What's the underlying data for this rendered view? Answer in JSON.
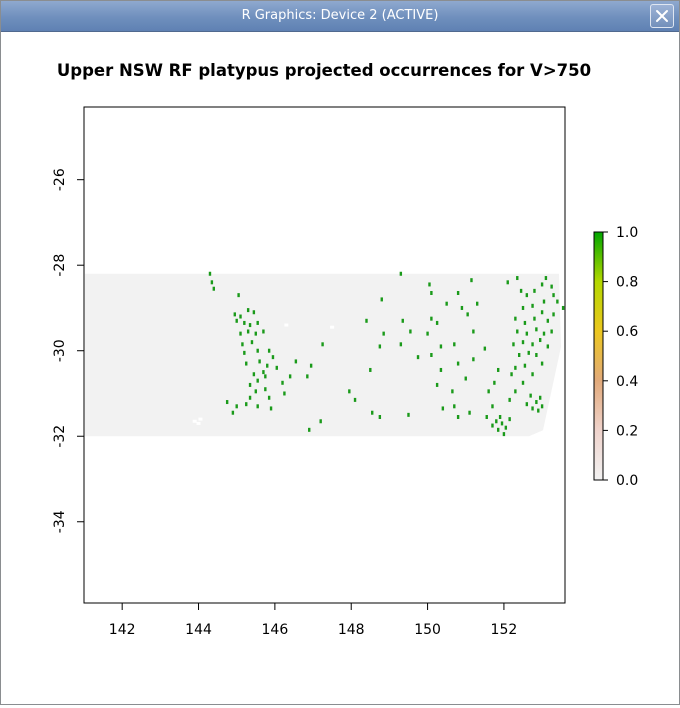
{
  "window": {
    "title": "R Graphics: Device 2 (ACTIVE)",
    "close_icon": "close-icon"
  },
  "chart_data": {
    "type": "heatmap",
    "title": "Upper NSW RF platypus projected occurrences for V>750",
    "xlim": [
      141,
      153.6
    ],
    "ylim": [
      -35.9,
      -24.3
    ],
    "x_ticks": [
      142,
      144,
      146,
      148,
      150,
      152
    ],
    "y_ticks": [
      -26,
      -28,
      -30,
      -32,
      -34
    ],
    "xlabel": "",
    "ylabel": "",
    "grid": false,
    "region": {
      "x_range": [
        141,
        153.6
      ],
      "y_range": [
        -32,
        -28.2
      ],
      "base_value": 0.0,
      "base_color": "#f2f2f2"
    },
    "colorbar": {
      "min": 0.0,
      "max": 1.0,
      "ticks": [
        "0.0",
        "0.2",
        "0.4",
        "0.6",
        "0.8",
        "1.0"
      ],
      "colors": [
        "#f2f2f2",
        "#efd3cc",
        "#e2aa7b",
        "#ecc71f",
        "#b4d800",
        "#00a600"
      ],
      "placement": "right"
    },
    "occurrence_value": 1.0,
    "occurrence_color": "#1a9a1a",
    "occurrences": [
      [
        144.3,
        -28.2
      ],
      [
        144.35,
        -28.4
      ],
      [
        144.4,
        -28.55
      ],
      [
        145.05,
        -28.7
      ],
      [
        144.95,
        -29.15
      ],
      [
        145.1,
        -29.2
      ],
      [
        145.3,
        -29.05
      ],
      [
        145.45,
        -29.1
      ],
      [
        145.0,
        -29.3
      ],
      [
        145.2,
        -29.35
      ],
      [
        145.35,
        -29.4
      ],
      [
        145.55,
        -29.35
      ],
      [
        145.1,
        -29.6
      ],
      [
        145.3,
        -29.55
      ],
      [
        145.5,
        -29.6
      ],
      [
        145.7,
        -29.55
      ],
      [
        145.15,
        -29.85
      ],
      [
        145.4,
        -29.8
      ],
      [
        145.2,
        -30.05
      ],
      [
        145.55,
        -30.0
      ],
      [
        145.85,
        -30.0
      ],
      [
        145.25,
        -30.3
      ],
      [
        145.6,
        -30.25
      ],
      [
        145.95,
        -30.15
      ],
      [
        145.45,
        -30.55
      ],
      [
        145.7,
        -30.5
      ],
      [
        145.8,
        -30.35
      ],
      [
        146.05,
        -30.4
      ],
      [
        145.35,
        -30.8
      ],
      [
        145.55,
        -30.7
      ],
      [
        145.75,
        -30.6
      ],
      [
        145.5,
        -30.95
      ],
      [
        145.75,
        -30.9
      ],
      [
        146.2,
        -30.75
      ],
      [
        145.35,
        -31.1
      ],
      [
        145.85,
        -31.1
      ],
      [
        144.75,
        -31.2
      ],
      [
        145.0,
        -31.3
      ],
      [
        145.25,
        -31.25
      ],
      [
        145.55,
        -31.3
      ],
      [
        145.9,
        -31.35
      ],
      [
        144.9,
        -31.45
      ],
      [
        146.4,
        -30.6
      ],
      [
        146.55,
        -30.25
      ],
      [
        146.85,
        -30.6
      ],
      [
        146.25,
        -31.0
      ],
      [
        146.95,
        -30.35
      ],
      [
        147.25,
        -29.85
      ],
      [
        147.2,
        -31.65
      ],
      [
        146.9,
        -31.85
      ],
      [
        148.8,
        -28.8
      ],
      [
        149.3,
        -28.2
      ],
      [
        150.05,
        -28.45
      ],
      [
        150.1,
        -28.65
      ],
      [
        150.8,
        -28.65
      ],
      [
        151.15,
        -28.35
      ],
      [
        148.4,
        -29.3
      ],
      [
        149.35,
        -29.3
      ],
      [
        150.1,
        -29.25
      ],
      [
        150.25,
        -29.35
      ],
      [
        150.5,
        -28.9
      ],
      [
        150.9,
        -29.0
      ],
      [
        151.05,
        -29.15
      ],
      [
        151.3,
        -28.9
      ],
      [
        148.85,
        -29.6
      ],
      [
        149.55,
        -29.55
      ],
      [
        150.0,
        -29.6
      ],
      [
        151.2,
        -29.55
      ],
      [
        148.75,
        -29.9
      ],
      [
        149.3,
        -29.85
      ],
      [
        149.75,
        -30.15
      ],
      [
        150.1,
        -30.1
      ],
      [
        150.35,
        -29.9
      ],
      [
        150.7,
        -29.85
      ],
      [
        151.2,
        -30.2
      ],
      [
        151.5,
        -29.95
      ],
      [
        148.5,
        -30.45
      ],
      [
        150.35,
        -30.45
      ],
      [
        150.8,
        -30.3
      ],
      [
        151.0,
        -30.65
      ],
      [
        147.95,
        -30.95
      ],
      [
        148.1,
        -31.15
      ],
      [
        150.25,
        -30.8
      ],
      [
        150.65,
        -30.95
      ],
      [
        148.55,
        -31.45
      ],
      [
        148.75,
        -31.55
      ],
      [
        149.5,
        -31.5
      ],
      [
        150.7,
        -31.3
      ],
      [
        150.8,
        -31.55
      ],
      [
        151.1,
        -31.45
      ],
      [
        150.4,
        -31.35
      ],
      [
        151.6,
        -30.95
      ],
      [
        151.75,
        -30.75
      ],
      [
        151.85,
        -30.45
      ],
      [
        151.7,
        -31.3
      ],
      [
        151.55,
        -31.55
      ],
      [
        152.45,
        -28.6
      ],
      [
        152.6,
        -28.7
      ],
      [
        152.8,
        -28.6
      ],
      [
        153.0,
        -28.45
      ],
      [
        153.1,
        -28.3
      ],
      [
        153.25,
        -28.5
      ],
      [
        153.3,
        -28.7
      ],
      [
        153.05,
        -28.85
      ],
      [
        152.75,
        -28.95
      ],
      [
        152.5,
        -29.0
      ],
      [
        152.3,
        -29.25
      ],
      [
        152.55,
        -29.35
      ],
      [
        152.8,
        -29.25
      ],
      [
        153.0,
        -29.1
      ],
      [
        153.15,
        -29.3
      ],
      [
        153.3,
        -29.15
      ],
      [
        152.35,
        -29.55
      ],
      [
        152.6,
        -29.6
      ],
      [
        152.85,
        -29.5
      ],
      [
        153.05,
        -29.6
      ],
      [
        153.25,
        -29.55
      ],
      [
        152.25,
        -29.85
      ],
      [
        152.5,
        -29.8
      ],
      [
        152.75,
        -29.85
      ],
      [
        152.95,
        -29.75
      ],
      [
        153.15,
        -29.9
      ],
      [
        152.4,
        -30.1
      ],
      [
        152.65,
        -30.05
      ],
      [
        152.85,
        -30.1
      ],
      [
        153.0,
        -30.3
      ],
      [
        152.55,
        -30.35
      ],
      [
        152.3,
        -30.4
      ],
      [
        152.75,
        -30.55
      ],
      [
        152.5,
        -30.75
      ],
      [
        152.3,
        -30.95
      ],
      [
        152.15,
        -31.15
      ],
      [
        152.7,
        -31.05
      ],
      [
        152.85,
        -31.2
      ],
      [
        152.95,
        -31.1
      ],
      [
        153.0,
        -31.3
      ],
      [
        152.75,
        -31.35
      ],
      [
        152.9,
        -31.4
      ],
      [
        152.6,
        -31.25
      ],
      [
        152.2,
        -30.55
      ],
      [
        151.8,
        -31.65
      ],
      [
        151.95,
        -31.7
      ],
      [
        152.05,
        -31.8
      ],
      [
        151.85,
        -31.85
      ],
      [
        152.0,
        -31.95
      ],
      [
        151.7,
        -31.75
      ],
      [
        152.15,
        -31.6
      ],
      [
        151.9,
        -31.55
      ],
      [
        153.55,
        -29.0
      ],
      [
        153.4,
        -28.85
      ],
      [
        152.35,
        -28.3
      ],
      [
        152.1,
        -28.4
      ]
    ],
    "gap_cells": [
      [
        143.9,
        -31.65
      ],
      [
        144.0,
        -31.7
      ],
      [
        146.3,
        -29.4
      ],
      [
        147.5,
        -29.45
      ],
      [
        144.05,
        -31.6
      ]
    ]
  }
}
